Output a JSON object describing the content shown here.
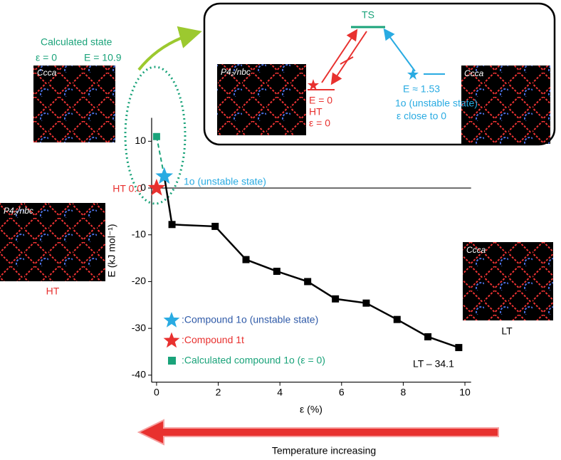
{
  "chart_data": {
    "type": "line",
    "xlabel": "ε (%)",
    "ylabel": "E (kJ mol⁻¹)",
    "xlim": [
      -0.16,
      10.2
    ],
    "ylim": [
      -41.5,
      15
    ],
    "xticks": [
      0,
      2,
      4,
      6,
      8,
      10
    ],
    "yticks": [
      10,
      0,
      -10,
      -20,
      -30,
      -40
    ],
    "reference_line": 0,
    "series": [
      {
        "name": ":Compound 1o (unstable state)",
        "color": "#29abe2",
        "marker": "star",
        "text_color": "#2f5aa8",
        "x": [
          0.25
        ],
        "values": [
          2.5
        ]
      },
      {
        "name": ":Compound 1t",
        "color": "#e8312f",
        "marker": "star",
        "text_color": "#e8312f",
        "x": [
          0
        ],
        "values": [
          0
        ]
      },
      {
        "name": ":Calculated compound 1o (ε = 0)",
        "color": "#1aa37a",
        "marker": "square",
        "text_color": "#1aa37a",
        "x": [
          0
        ],
        "values": [
          11
        ]
      },
      {
        "color": "#000000",
        "marker": "square-line",
        "x": [
          0.25,
          0.5,
          1.9,
          2.9,
          3.9,
          4.9,
          5.8,
          6.8,
          7.8,
          8.8,
          9.8
        ],
        "values": [
          2.5,
          -7.8,
          -8.2,
          -15.3,
          -17.8,
          -20,
          -23.7,
          -24.6,
          -28.1,
          -31.8,
          -34.1
        ]
      }
    ],
    "annotations": [
      "Calculated state",
      "ε = 0",
      "E = 10.9",
      "Ccca",
      "P4₂/nbc",
      "HT",
      "HT 0.0",
      "1o (unstable state)",
      "Ccca",
      "LT",
      "LT – 34.1",
      "Temperature increasing",
      "TS",
      "P4₂/nbc",
      "Ccca",
      "E = 0",
      "HT",
      "ε = 0",
      "E ≈ 1.53",
      "1o (unstable state)",
      "ε close to 0"
    ]
  }
}
